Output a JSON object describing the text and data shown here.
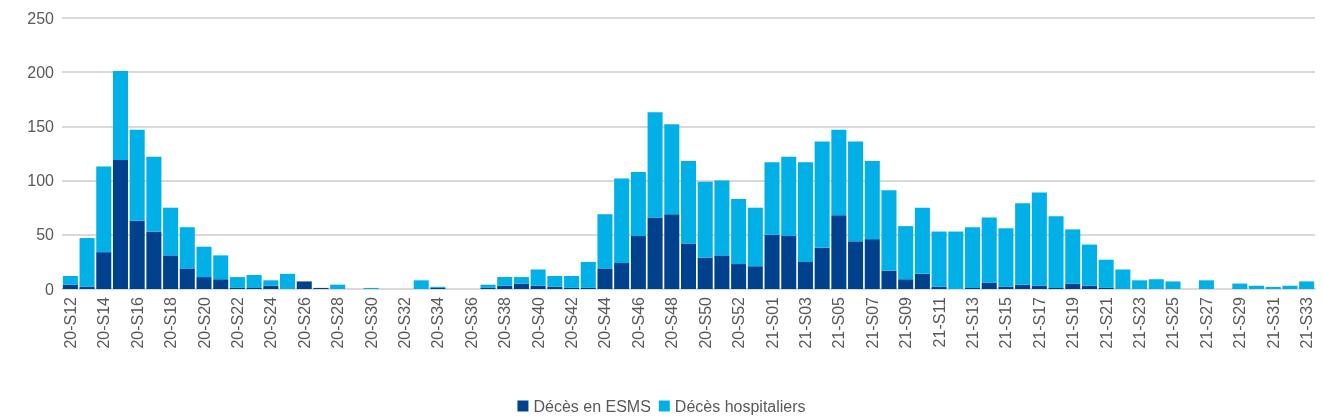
{
  "chart_data": {
    "type": "bar",
    "stacked": true,
    "categories": [
      "20-S12",
      null,
      "20-S14",
      null,
      "20-S16",
      null,
      "20-S18",
      null,
      "20-S20",
      null,
      "20-S22",
      null,
      "20-S24",
      null,
      "20-S26",
      null,
      "20-S28",
      null,
      "20-S30",
      null,
      "20-S32",
      null,
      "20-S34",
      null,
      "20-S36",
      null,
      "20-S38",
      null,
      "20-S40",
      null,
      "20-S42",
      null,
      "20-S44",
      null,
      "20-S46",
      null,
      "20-S48",
      null,
      "20-S50",
      null,
      "20-S52",
      null,
      "21-S01",
      null,
      "21-S03",
      null,
      "21-S05",
      null,
      "21-S07",
      null,
      "21-S09",
      null,
      "21-S11",
      null,
      "21-S13",
      null,
      "21-S15",
      null,
      "21-S17",
      null,
      "21-S19",
      null,
      "21-S21",
      null,
      "21-S23",
      null,
      "21-S25",
      null,
      "21-S27",
      null,
      "21-S29",
      null,
      "21-S31",
      null,
      "21-S33"
    ],
    "series": [
      {
        "name": "Décès en ESMS",
        "color": "#00418d",
        "values": [
          4,
          2,
          34,
          119,
          63,
          53,
          31,
          19,
          11,
          9,
          1,
          1,
          3,
          0,
          7,
          1,
          0,
          0,
          0,
          0,
          0,
          0,
          1,
          0,
          0,
          1,
          3,
          5,
          3,
          2,
          1,
          1,
          19,
          24,
          49,
          66,
          69,
          42,
          29,
          31,
          23,
          21,
          50,
          49,
          25,
          38,
          68,
          44,
          46,
          17,
          9,
          14,
          2,
          0,
          1,
          6,
          2,
          4,
          3,
          1,
          5,
          3,
          1,
          0,
          0,
          0,
          0,
          0,
          0,
          0,
          0,
          0,
          0,
          0,
          0
        ]
      },
      {
        "name": "Décès hospitaliers",
        "color": "#00b0e6",
        "values": [
          8,
          45,
          79,
          82,
          84,
          69,
          44,
          38,
          28,
          22,
          10,
          12,
          5,
          14,
          0,
          0,
          4,
          0,
          1,
          0,
          0,
          8,
          1,
          0,
          0,
          3,
          8,
          6,
          15,
          10,
          11,
          24,
          50,
          78,
          59,
          97,
          83,
          76,
          70,
          69,
          60,
          54,
          67,
          73,
          92,
          98,
          79,
          92,
          72,
          74,
          49,
          61,
          51,
          53,
          56,
          60,
          54,
          75,
          86,
          66,
          50,
          38,
          26,
          18,
          8,
          9,
          7,
          0,
          8,
          0,
          5,
          3,
          2,
          3,
          7
        ]
      }
    ],
    "ylim": [
      0,
      250
    ],
    "yticks": [
      0,
      50,
      100,
      150,
      200,
      250
    ],
    "grid": "y",
    "legend": "bottom"
  }
}
